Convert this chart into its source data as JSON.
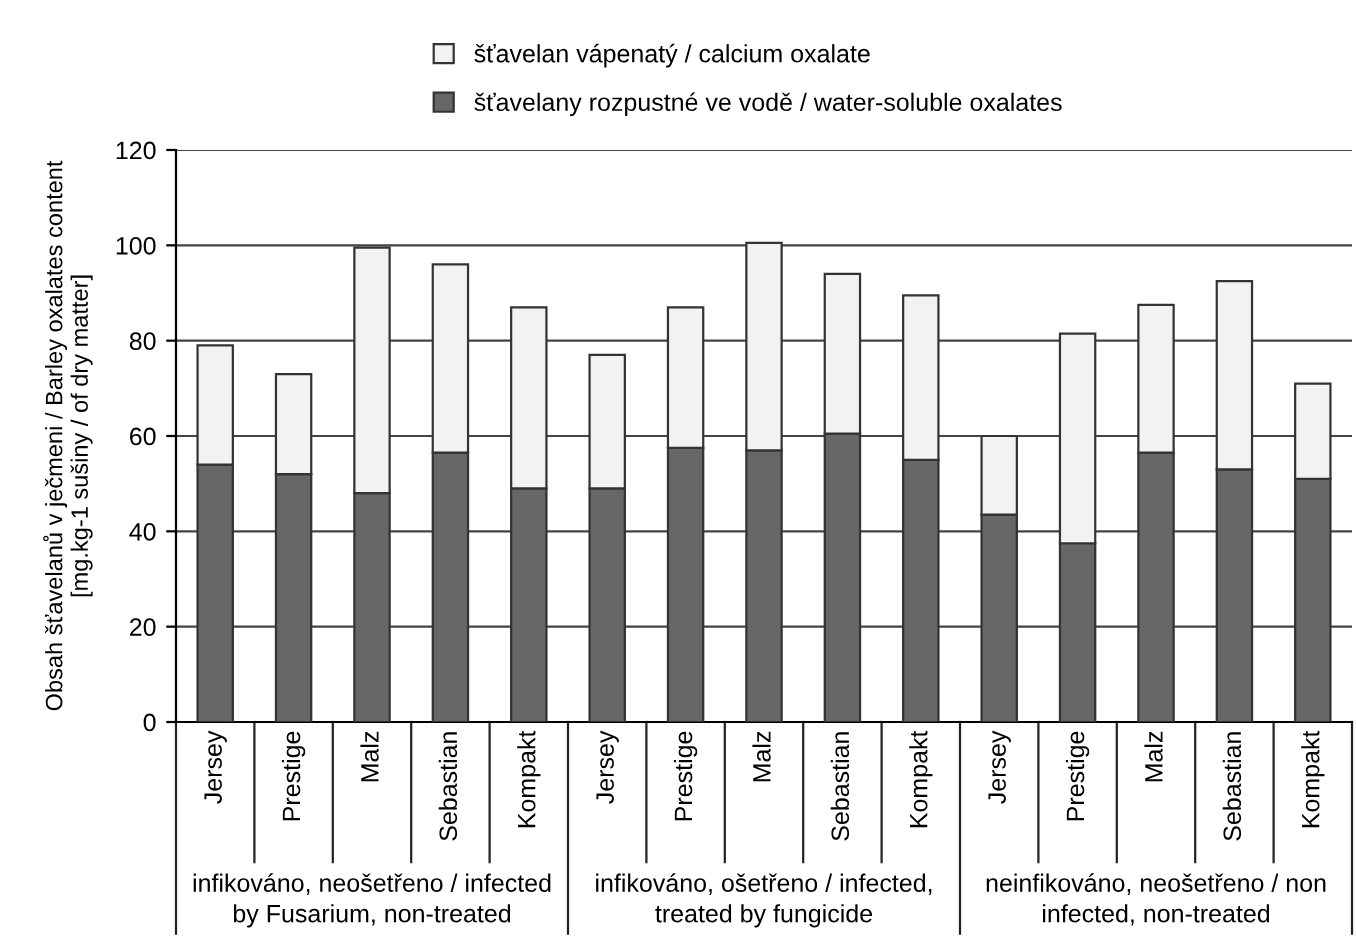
{
  "chart_data": {
    "type": "bar",
    "stacked": true,
    "ylabel": "Obsah šťavelanů v ječmeni / Barley oxalates content\n[mg.kg-1 sušiny / of dry matter]",
    "categories": [
      "Jersey",
      "Prestige",
      "Malz",
      "Sebastian",
      "Kompakt",
      "Jersey",
      "Prestige",
      "Malz",
      "Sebastian",
      "Kompakt",
      "Jersey",
      "Prestige",
      "Malz",
      "Sebastian",
      "Kompakt"
    ],
    "series": [
      {
        "name": "šťavelany rozpustné ve vodě / water-soluble oxalates",
        "color": "#666769",
        "values": [
          54,
          52,
          48,
          56.5,
          49,
          49,
          57.5,
          57,
          60.5,
          55,
          43.5,
          37.5,
          56.5,
          53,
          51
        ]
      },
      {
        "name": "šťavelan vápenatý / calcium oxalate",
        "color": "#f1f2f3",
        "values": [
          25,
          21,
          51.5,
          39.5,
          38,
          28,
          29.5,
          43.5,
          33.5,
          34.5,
          16.5,
          44,
          31,
          39.5,
          20
        ]
      }
    ],
    "annotations": [
      "infikováno, neošetřeno / infected\nby Fusarium, non-treated",
      "infikováno, ošetřeno / infected,\ntreated by fungicide",
      "neinfikováno, neošetřeno / non\ninfected, non-treated"
    ],
    "ylim": [
      0,
      120
    ],
    "yticks": [
      0,
      20,
      40,
      60,
      80,
      100,
      120
    ],
    "grid": "y",
    "legend": "top"
  }
}
